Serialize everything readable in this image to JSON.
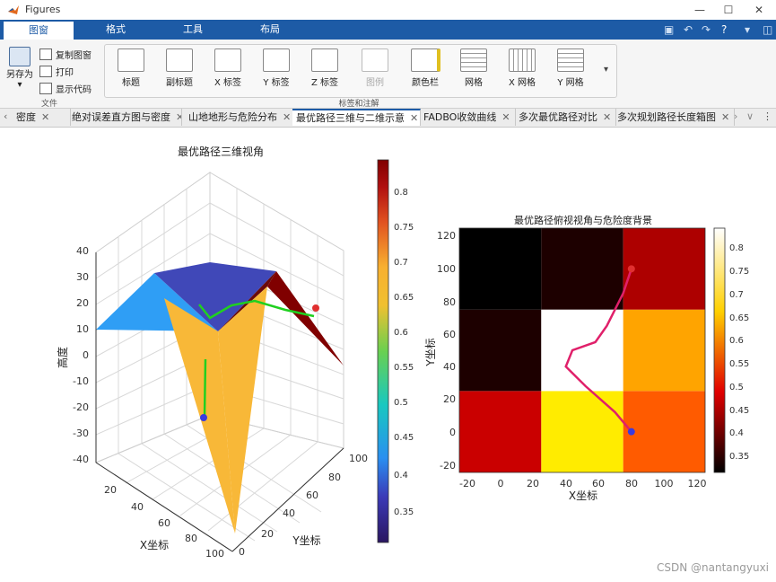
{
  "window": {
    "title": "Figures"
  },
  "ribbon_tabs": [
    "图窗",
    "格式",
    "工具",
    "布局"
  ],
  "file_group": {
    "save_as": "另存为",
    "copy_figure": "复制图窗",
    "print": "打印",
    "show_code": "显示代码",
    "group_label": "文件"
  },
  "labels_group": {
    "buttons": [
      "标题",
      "副标题",
      "X 标签",
      "Y 标签",
      "Z 标签",
      "图例",
      "颜色栏",
      "网格",
      "X 网格",
      "Y 网格"
    ],
    "group_label": "标签和注解"
  },
  "doc_tabs": [
    "密度",
    "绝对误差直方图与密度",
    "山地地形与危险分布",
    "最优路径三维与二维示意",
    "FADBO收敛曲线",
    "多次最优路径对比",
    "多次规划路径长度箱图"
  ],
  "active_doc_tab": 3,
  "plot3d": {
    "title": "最优路径三维视角",
    "zlabel": "高度",
    "xlabel": "X坐标",
    "ylabel": "Y坐标",
    "z_ticks": [
      "40",
      "30",
      "20",
      "10",
      "0",
      "-10",
      "-20",
      "-30",
      "-40"
    ],
    "x_ticks": [
      "20",
      "40",
      "60",
      "80",
      "100"
    ],
    "y_ticks": [
      "0",
      "20",
      "40",
      "60",
      "80",
      "100"
    ],
    "colorbar_ticks": [
      "0.8",
      "0.75",
      "0.7",
      "0.65",
      "0.6",
      "0.55",
      "0.5",
      "0.45",
      "0.4",
      "0.35"
    ]
  },
  "plot2d": {
    "title": "最优路径俯视视角与危险度背景",
    "xlabel": "X坐标",
    "ylabel": "Y坐标",
    "x_ticks": [
      "-20",
      "0",
      "20",
      "40",
      "60",
      "80",
      "100",
      "120"
    ],
    "y_ticks": [
      "120",
      "100",
      "80",
      "60",
      "40",
      "20",
      "0",
      "-20"
    ],
    "colorbar_ticks": [
      "0.8",
      "0.75",
      "0.7",
      "0.65",
      "0.6",
      "0.55",
      "0.5",
      "0.45",
      "0.4",
      "0.35"
    ]
  },
  "chart_data": [
    {
      "type": "heatmap",
      "title": "最优路径俯视视角与危险度背景",
      "xlabel": "X坐标",
      "ylabel": "Y坐标",
      "xlim": [
        -25,
        125
      ],
      "ylim": [
        -25,
        125
      ],
      "x_centers": [
        0,
        50,
        100
      ],
      "y_centers": [
        0,
        50,
        100
      ],
      "values": [
        [
          0.45,
          0.65,
          0.55
        ],
        [
          0.33,
          0.85,
          0.6
        ],
        [
          0.31,
          0.33,
          0.43
        ]
      ],
      "value_rows_order": "y=0,50,100",
      "path": {
        "x": [
          80,
          70,
          52,
          40,
          44,
          58,
          65,
          75,
          80
        ],
        "y": [
          0,
          12,
          28,
          40,
          50,
          55,
          65,
          85,
          100
        ]
      },
      "start": {
        "x": 80,
        "y": 0
      },
      "goal": {
        "x": 80,
        "y": 100
      },
      "clim": [
        0.31,
        0.84
      ],
      "colormap": "hot"
    }
  ],
  "colors": {
    "ribbon_blue": "#1d5ba6",
    "path_pink": "#e0206a",
    "start_blue": "#3a3ae0",
    "goal_red": "#e03030",
    "path_green": "#20d020"
  },
  "watermark": "CSDN @nantangyuxi"
}
